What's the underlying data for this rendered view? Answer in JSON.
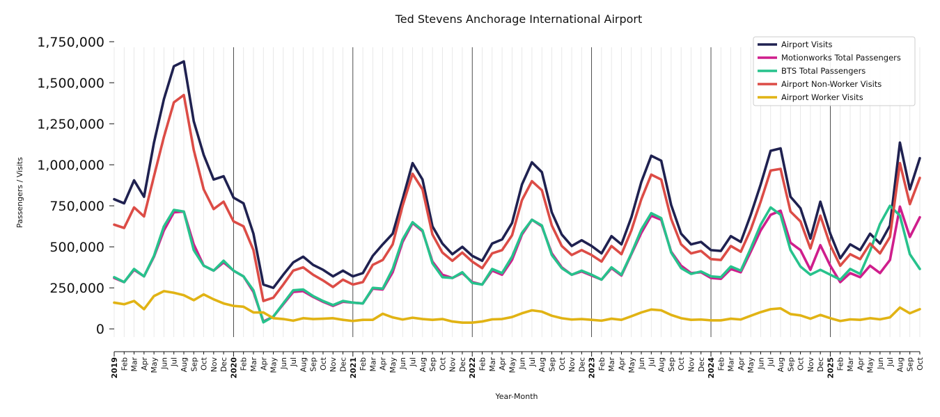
{
  "chart_data": {
    "type": "line",
    "title": "Ted Stevens Anchorage International Airport",
    "xlabel": "Year-Month",
    "ylabel": "Passengers / Visits",
    "ylim": [
      -50000,
      1750000
    ],
    "yticks": [
      0,
      250000,
      500000,
      750000,
      1000000,
      1250000,
      1500000,
      1750000
    ],
    "ytick_labels": [
      "0",
      "250,000",
      "500,000",
      "750,000",
      "1,000,000",
      "1,250,000",
      "1,500,000",
      "1,750,000"
    ],
    "grid": "vertical monthly gridlines; year separator lines",
    "legend_position": "top-right",
    "x": [
      "2019",
      "Feb",
      "Mar",
      "Apr",
      "May",
      "Jun",
      "Jul",
      "Aug",
      "Sep",
      "Oct",
      "Nov",
      "Dec",
      "2020",
      "Feb",
      "Mar",
      "Apr",
      "May",
      "Jun",
      "Jul",
      "Aug",
      "Sep",
      "Oct",
      "Nov",
      "Dec",
      "2021",
      "Feb",
      "Mar",
      "Apr",
      "May",
      "Jun",
      "Jul",
      "Aug",
      "Sep",
      "Oct",
      "Nov",
      "Dec",
      "2022",
      "Feb",
      "Mar",
      "Apr",
      "May",
      "Jun",
      "Jul",
      "Aug",
      "Sep",
      "Oct",
      "Nov",
      "Dec",
      "2023",
      "Feb",
      "Mar",
      "Apr",
      "May",
      "Jun",
      "Jul",
      "Aug",
      "Sep",
      "Oct",
      "Nov",
      "Dec",
      "2024",
      "Feb",
      "Mar",
      "Apr",
      "May",
      "Jun",
      "Jul",
      "Aug",
      "Sep",
      "Oct",
      "Nov",
      "Dec",
      "2025",
      "Feb",
      "Mar",
      "Apr",
      "May",
      "Jun",
      "Jul",
      "Aug",
      "Sep",
      "Oct"
    ],
    "year_ticks": [
      "2019",
      "2020",
      "2021",
      "2022",
      "2023",
      "2024",
      "2025"
    ],
    "series": [
      {
        "name": "Airport Visits",
        "color": "#1f2150",
        "values": [
          790000,
          765000,
          905000,
          805000,
          1135000,
          1400000,
          1600000,
          1630000,
          1265000,
          1060000,
          910000,
          930000,
          800000,
          765000,
          580000,
          270000,
          250000,
          330000,
          405000,
          440000,
          390000,
          360000,
          320000,
          355000,
          320000,
          340000,
          445000,
          515000,
          580000,
          790000,
          1010000,
          910000,
          625000,
          520000,
          455000,
          500000,
          445000,
          415000,
          520000,
          545000,
          645000,
          880000,
          1015000,
          955000,
          710000,
          575000,
          505000,
          540000,
          505000,
          460000,
          565000,
          515000,
          680000,
          895000,
          1055000,
          1025000,
          755000,
          580000,
          515000,
          530000,
          480000,
          475000,
          565000,
          530000,
          695000,
          880000,
          1085000,
          1100000,
          805000,
          735000,
          550000,
          775000,
          580000,
          430000,
          515000,
          480000,
          580000,
          520000,
          630000,
          1135000,
          850000,
          1040000
        ]
      },
      {
        "name": "Motionworks Total Passengers",
        "color": "#cf1e8c",
        "values": [
          310000,
          285000,
          360000,
          320000,
          440000,
          600000,
          710000,
          715000,
          515000,
          385000,
          355000,
          405000,
          355000,
          320000,
          225000,
          45000,
          75000,
          150000,
          225000,
          230000,
          195000,
          165000,
          140000,
          165000,
          160000,
          155000,
          245000,
          240000,
          345000,
          530000,
          645000,
          595000,
          410000,
          330000,
          310000,
          340000,
          285000,
          270000,
          355000,
          330000,
          420000,
          575000,
          665000,
          625000,
          460000,
          375000,
          330000,
          350000,
          325000,
          300000,
          370000,
          325000,
          455000,
          585000,
          690000,
          665000,
          470000,
          385000,
          340000,
          345000,
          310000,
          305000,
          365000,
          345000,
          470000,
          600000,
          695000,
          720000,
          525000,
          480000,
          360000,
          510000,
          385000,
          285000,
          340000,
          315000,
          385000,
          340000,
          420000,
          745000,
          560000,
          680000
        ]
      },
      {
        "name": "BTS Total Passengers",
        "color": "#27c28c",
        "values": [
          315000,
          285000,
          365000,
          320000,
          445000,
          625000,
          725000,
          715000,
          480000,
          385000,
          355000,
          415000,
          355000,
          320000,
          235000,
          40000,
          75000,
          155000,
          235000,
          240000,
          200000,
          170000,
          145000,
          170000,
          160000,
          155000,
          250000,
          245000,
          365000,
          545000,
          650000,
          600000,
          400000,
          315000,
          310000,
          345000,
          280000,
          270000,
          365000,
          340000,
          440000,
          585000,
          665000,
          630000,
          450000,
          370000,
          330000,
          355000,
          330000,
          300000,
          375000,
          330000,
          460000,
          605000,
          705000,
          675000,
          465000,
          370000,
          335000,
          350000,
          320000,
          315000,
          380000,
          355000,
          490000,
          635000,
          740000,
          695000,
          480000,
          380000,
          330000,
          360000,
          330000,
          300000,
          365000,
          335000,
          475000,
          640000,
          750000,
          690000,
          455000,
          365000
        ]
      },
      {
        "name": "Airport Non-Worker Visits",
        "color": "#dc4c46",
        "values": [
          635000,
          615000,
          740000,
          685000,
          930000,
          1170000,
          1380000,
          1425000,
          1090000,
          850000,
          730000,
          775000,
          655000,
          625000,
          480000,
          170000,
          190000,
          270000,
          355000,
          375000,
          330000,
          295000,
          255000,
          300000,
          270000,
          285000,
          390000,
          420000,
          515000,
          750000,
          945000,
          850000,
          575000,
          465000,
          415000,
          465000,
          410000,
          370000,
          460000,
          480000,
          570000,
          785000,
          900000,
          845000,
          630000,
          505000,
          450000,
          480000,
          450000,
          410000,
          505000,
          455000,
          600000,
          790000,
          940000,
          910000,
          670000,
          515000,
          460000,
          475000,
          425000,
          420000,
          505000,
          470000,
          605000,
          775000,
          965000,
          975000,
          715000,
          655000,
          490000,
          690000,
          510000,
          385000,
          455000,
          425000,
          520000,
          460000,
          560000,
          1010000,
          760000,
          920000
        ]
      },
      {
        "name": "Airport Worker Visits",
        "color": "#e1b314",
        "values": [
          160000,
          150000,
          170000,
          120000,
          200000,
          230000,
          220000,
          205000,
          175000,
          210000,
          180000,
          155000,
          140000,
          135000,
          100000,
          100000,
          65000,
          60000,
          50000,
          65000,
          60000,
          62000,
          65000,
          55000,
          48000,
          55000,
          55000,
          92000,
          70000,
          57000,
          68000,
          60000,
          55000,
          60000,
          45000,
          38000,
          38000,
          45000,
          58000,
          60000,
          72000,
          95000,
          113000,
          105000,
          80000,
          65000,
          57000,
          60000,
          55000,
          50000,
          62000,
          55000,
          77000,
          100000,
          118000,
          113000,
          85000,
          65000,
          55000,
          57000,
          52000,
          52000,
          62000,
          57000,
          80000,
          102000,
          120000,
          125000,
          90000,
          82000,
          62000,
          85000,
          65000,
          48000,
          58000,
          55000,
          65000,
          58000,
          70000,
          130000,
          95000,
          120000
        ]
      }
    ]
  }
}
